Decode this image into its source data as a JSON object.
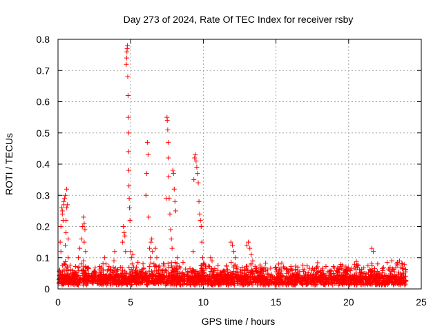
{
  "chart_data": {
    "type": "scatter",
    "title": "Day 273 of 2024, Rate Of TEC Index for receiver rsby",
    "xlabel": "GPS time / hours",
    "ylabel": "ROTI / TECUs",
    "xlim": [
      0,
      25
    ],
    "ylim": [
      0,
      0.8
    ],
    "xticks": [
      "0",
      "5",
      "10",
      "15",
      "20",
      "25"
    ],
    "yticks": [
      "0",
      "0.1",
      "0.2",
      "0.3",
      "0.4",
      "0.5",
      "0.6",
      "0.7",
      "0.8"
    ],
    "xtick_values": [
      0,
      5,
      10,
      15,
      20,
      25
    ],
    "ytick_values": [
      0,
      0.1,
      0.2,
      0.3,
      0.4,
      0.5,
      0.6,
      0.7,
      0.8
    ],
    "grid": true,
    "marker": "+",
    "series_color": "#ff0000",
    "series": [
      {
        "name": "ROTI",
        "x": [
          0.1,
          0.15,
          0.2,
          0.25,
          0.3,
          0.35,
          0.4,
          0.45,
          0.5,
          0.55,
          0.6,
          0.65,
          0.7,
          0.2,
          0.3,
          0.4,
          0.5,
          0.6,
          0.7,
          0.35,
          0.45,
          0.55,
          1.4,
          1.5,
          1.6,
          1.7,
          1.75,
          1.8,
          1.85,
          1.9,
          1.6,
          1.7,
          1.8,
          1.9,
          1.75,
          3.1,
          3.2,
          3.3,
          3.8,
          3.85,
          3.9,
          4.4,
          4.45,
          4.5,
          4.55,
          4.6,
          4.65,
          4.7,
          4.72,
          4.74,
          4.76,
          4.78,
          4.8,
          4.82,
          4.84,
          4.85,
          4.86,
          4.87,
          4.88,
          4.9,
          4.92,
          4.95,
          5.0,
          5.05,
          5.1,
          5.15,
          5.2,
          6.0,
          6.05,
          6.1,
          6.15,
          6.2,
          6.25,
          6.3,
          6.35,
          6.4,
          6.45,
          6.5,
          6.6,
          6.7,
          6.8,
          6.9,
          7.3,
          7.4,
          7.45,
          7.5,
          7.52,
          7.55,
          7.58,
          7.6,
          7.62,
          7.65,
          7.7,
          7.75,
          7.8,
          7.85,
          7.9,
          7.95,
          8.0,
          8.05,
          8.1,
          8.2,
          9.3,
          9.35,
          9.4,
          9.45,
          9.5,
          9.55,
          9.6,
          9.65,
          9.7,
          9.75,
          9.8,
          9.85,
          9.9,
          9.95,
          10.0,
          10.5,
          10.6,
          11.9,
          12.0,
          12.1,
          12.2,
          13.0,
          13.1,
          13.2,
          13.3,
          13.4,
          15.0,
          16.5,
          17.8,
          18.2,
          21.6,
          21.7,
          22.0,
          23.3,
          23.5,
          23.6,
          23.7
        ],
        "y": [
          0.06,
          0.15,
          0.2,
          0.26,
          0.25,
          0.22,
          0.28,
          0.29,
          0.3,
          0.18,
          0.32,
          0.27,
          0.16,
          0.12,
          0.24,
          0.27,
          0.14,
          0.26,
          0.1,
          0.06,
          0.08,
          0.22,
          0.1,
          0.13,
          0.08,
          0.2,
          0.23,
          0.15,
          0.19,
          0.12,
          0.16,
          0.05,
          0.21,
          0.07,
          0.09,
          0.06,
          0.1,
          0.08,
          0.07,
          0.09,
          0.12,
          0.05,
          0.15,
          0.2,
          0.18,
          0.17,
          0.12,
          0.72,
          0.74,
          0.76,
          0.77,
          0.78,
          0.68,
          0.62,
          0.55,
          0.5,
          0.44,
          0.38,
          0.33,
          0.29,
          0.26,
          0.22,
          0.12,
          0.1,
          0.08,
          0.11,
          0.07,
          0.05,
          0.3,
          0.37,
          0.47,
          0.43,
          0.23,
          0.13,
          0.1,
          0.15,
          0.16,
          0.12,
          0.08,
          0.13,
          0.1,
          0.06,
          0.08,
          0.06,
          0.29,
          0.55,
          0.54,
          0.51,
          0.47,
          0.42,
          0.36,
          0.29,
          0.24,
          0.19,
          0.16,
          0.13,
          0.38,
          0.37,
          0.32,
          0.28,
          0.25,
          0.1,
          0.12,
          0.35,
          0.42,
          0.43,
          0.41,
          0.39,
          0.37,
          0.34,
          0.28,
          0.24,
          0.22,
          0.2,
          0.15,
          0.1,
          0.08,
          0.1,
          0.09,
          0.15,
          0.14,
          0.12,
          0.1,
          0.14,
          0.15,
          0.13,
          0.11,
          0.09,
          0.07,
          0.06,
          0.07,
          0.06,
          0.13,
          0.12,
          0.08,
          0.08,
          0.09,
          0.07,
          0.08
        ]
      }
    ]
  }
}
